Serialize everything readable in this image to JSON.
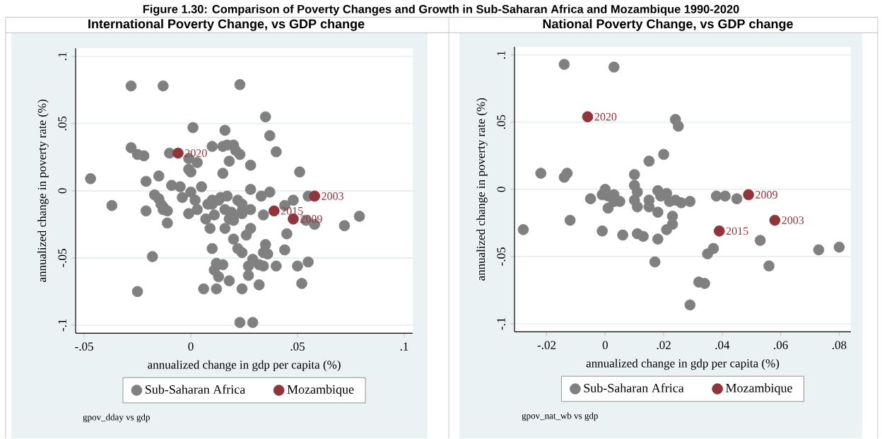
{
  "chart_data": [
    {
      "type": "scatter",
      "title": "Figure 1.30: Comparison of Poverty Changes and Growth in Sub-Saharan Africa and Mozambique 1990-2020",
      "subtitle": "International Poverty Change, vs GDP change",
      "xlabel": "annualized change in gdp per capita (%)",
      "ylabel": "annualized change in poverty rate (%)",
      "xlim": [
        -0.054,
        0.104
      ],
      "ylim": [
        -0.106,
        0.106
      ],
      "xticks": [
        {
          "value": -0.05,
          "label": "-.05"
        },
        0,
        {
          "value": 0.05,
          "label": ".05"
        },
        {
          "value": 0.1,
          "label": ".1"
        }
      ],
      "yticks": [
        {
          "value": -0.1,
          "label": "-.1"
        },
        {
          "value": -0.05,
          "label": "-.05"
        },
        0,
        {
          "value": 0.05,
          "label": ".05"
        },
        {
          "value": 0.1,
          "label": ".1"
        }
      ],
      "grid": "y",
      "legend": "bottom",
      "marker": "circle",
      "series": [
        {
          "name": "Sub-Saharan Africa",
          "color": "#808080",
          "x": [
            -0.028,
            -0.013,
            0.023,
            0.001,
            0.016,
            -0.028,
            -0.025,
            -0.022,
            -0.01,
            -0.001,
            0.003,
            0.01,
            0.015,
            0.017,
            0.02,
            0.021,
            0.023,
            0.018,
            0.028,
            -0.001,
            0.0,
            0.015,
            -0.047,
            -0.015,
            -0.021,
            -0.009,
            -0.005,
            0.005,
            0.0,
            0.028,
            -0.017,
            -0.015,
            -0.014,
            -0.013,
            -0.011,
            -0.013,
            -0.037,
            -0.021,
            -0.011,
            -0.004,
            0.002,
            0.003,
            -0.001,
            0.008,
            0.01,
            0.01,
            0.013,
            0.014,
            0.017,
            0.022,
            0.024,
            0.016,
            0.019,
            0.02,
            0.018,
            0.02,
            0.024,
            0.024,
            0.028,
            0.011,
            0.007,
            0.009,
            0.016,
            0.028,
            0.026,
            0.02,
            0.01,
            0.022,
            0.024,
            0.029,
            -0.018,
            0.012,
            0.015,
            0.011,
            0.027,
            0.013,
            0.027,
            0.018,
            -0.025,
            0.006,
            0.012,
            0.024,
            0.023,
            0.029,
            0.035,
            0.037,
            0.04,
            0.051,
            0.037,
            0.033,
            0.048,
            0.044,
            0.055,
            0.034,
            0.054,
            0.058,
            0.072,
            0.079,
            0.045,
            0.035,
            0.034,
            0.036,
            0.044,
            0.032,
            0.034,
            0.04,
            0.05,
            0.055,
            0.032,
            0.052
          ],
          "values": [
            0.078,
            0.078,
            0.079,
            0.047,
            0.045,
            0.032,
            0.027,
            0.026,
            0.028,
            0.024,
            0.021,
            0.033,
            0.033,
            0.034,
            0.034,
            0.03,
            0.027,
            0.022,
            0.019,
            0.016,
            0.014,
            0.013,
            0.009,
            0.011,
            0.007,
            0.004,
            0.003,
            0.003,
            -0.001,
            0.001,
            -0.003,
            -0.006,
            -0.01,
            -0.012,
            -0.015,
            -0.014,
            -0.011,
            -0.015,
            -0.024,
            -0.005,
            -0.007,
            -0.014,
            -0.017,
            -0.01,
            -0.007,
            -0.01,
            -0.007,
            -0.005,
            -0.004,
            -0.007,
            -0.01,
            -0.014,
            -0.016,
            -0.018,
            -0.021,
            -0.022,
            -0.017,
            -0.015,
            -0.014,
            -0.018,
            -0.021,
            -0.028,
            -0.028,
            -0.028,
            -0.033,
            -0.036,
            -0.043,
            -0.043,
            -0.046,
            -0.051,
            -0.049,
            -0.054,
            -0.055,
            -0.059,
            -0.056,
            -0.064,
            -0.063,
            -0.067,
            -0.075,
            -0.073,
            -0.073,
            -0.073,
            -0.098,
            -0.098,
            0.055,
            0.041,
            0.029,
            0.014,
            -0.001,
            -0.004,
            -0.007,
            -0.011,
            -0.004,
            -0.018,
            -0.022,
            -0.025,
            -0.026,
            -0.019,
            -0.032,
            -0.04,
            -0.046,
            -0.047,
            -0.044,
            -0.055,
            -0.056,
            -0.056,
            -0.056,
            -0.053,
            -0.07,
            -0.069
          ]
        },
        {
          "name": "Mozambique",
          "color": "#90353b",
          "x": [
            -0.006,
            0.058,
            0.039,
            0.048
          ],
          "values": [
            0.028,
            -0.004,
            -0.015,
            -0.021
          ]
        }
      ],
      "annotations": [
        {
          "text": "2020",
          "x": -0.006,
          "y": 0.028
        },
        {
          "text": "2003",
          "x": 0.058,
          "y": -0.004
        },
        {
          "text": "2015",
          "x": 0.039,
          "y": -0.015
        },
        {
          "text": "2009",
          "x": 0.048,
          "y": -0.021
        },
        "gpov_dday vs gdp"
      ]
    },
    {
      "type": "scatter",
      "subtitle": "National Poverty Change, vs GDP change",
      "xlabel": "annualized change in gdp per capita (%)",
      "ylabel": "annualized change in poverty rate (%)",
      "xlim": [
        -0.031,
        0.084
      ],
      "ylim": [
        -0.106,
        0.106
      ],
      "xticks": [
        {
          "value": -0.02,
          "label": "-.02"
        },
        0,
        {
          "value": 0.02,
          "label": ".02"
        },
        {
          "value": 0.04,
          "label": ".04"
        },
        {
          "value": 0.06,
          "label": ".06"
        },
        {
          "value": 0.08,
          "label": ".08"
        }
      ],
      "yticks": [
        {
          "value": -0.1,
          "label": "-.1"
        },
        {
          "value": -0.05,
          "label": "-.05"
        },
        0,
        {
          "value": 0.05,
          "label": ".05"
        },
        {
          "value": 0.1,
          "label": ".1"
        }
      ],
      "grid": "y",
      "legend": "bottom",
      "marker": "circle",
      "series": [
        {
          "name": "Sub-Saharan Africa",
          "color": "#808080",
          "x": [
            -0.014,
            0.003,
            0.024,
            0.025,
            0.02,
            0.015,
            -0.022,
            -0.014,
            -0.013,
            0.01,
            0.01,
            0.0,
            -0.001,
            0.001,
            0.003,
            0.003,
            0.005,
            -0.005,
            0.001,
            null,
            0.011,
            0.01,
            0.011,
            0.015,
            0.015,
            0.018,
            0.019,
            0.018,
            0.021,
            0.022,
            0.024,
            0.023,
            null,
            0.021,
            0.023,
            -0.012,
            -0.028,
            -0.001,
            0.006,
            0.011,
            0.013,
            null,
            0.018,
            0.017,
            0.026,
            0.029,
            0.038,
            0.041,
            0.045,
            0.053,
            0.037,
            0.035,
            0.073,
            0.08,
            0.056,
            0.032,
            0.034,
            0.029
          ],
          "values": [
            0.093,
            0.091,
            0.052,
            0.047,
            0.026,
            0.021,
            0.012,
            0.009,
            0.012,
            0.011,
            0.003,
            0.0,
            -0.004,
            -0.005,
            -0.004,
            -0.009,
            -0.009,
            -0.007,
            -0.014,
            null,
            -0.002,
            -0.008,
            -0.013,
            -0.008,
            -0.013,
            -0.001,
            -0.005,
            -0.017,
            -0.003,
            -0.009,
            -0.008,
            -0.02,
            null,
            -0.03,
            -0.026,
            -0.023,
            -0.03,
            -0.031,
            -0.034,
            -0.033,
            -0.035,
            null,
            -0.037,
            -0.054,
            -0.01,
            -0.009,
            -0.005,
            -0.005,
            -0.007,
            -0.038,
            -0.044,
            -0.048,
            -0.045,
            -0.043,
            -0.057,
            -0.069,
            -0.07,
            -0.086
          ]
        },
        {
          "name": "Mozambique",
          "color": "#90353b",
          "x": [
            -0.006,
            0.049,
            0.058,
            0.039
          ],
          "values": [
            0.054,
            -0.004,
            -0.023,
            -0.031
          ]
        }
      ],
      "annotations": [
        {
          "text": "2020",
          "x": -0.006,
          "y": 0.054
        },
        {
          "text": "2009",
          "x": 0.049,
          "y": -0.004
        },
        {
          "text": "2003",
          "x": 0.058,
          "y": -0.023
        },
        {
          "text": "2015",
          "x": 0.039,
          "y": -0.031
        },
        "gpov_nat_wb vs gdp"
      ]
    }
  ]
}
